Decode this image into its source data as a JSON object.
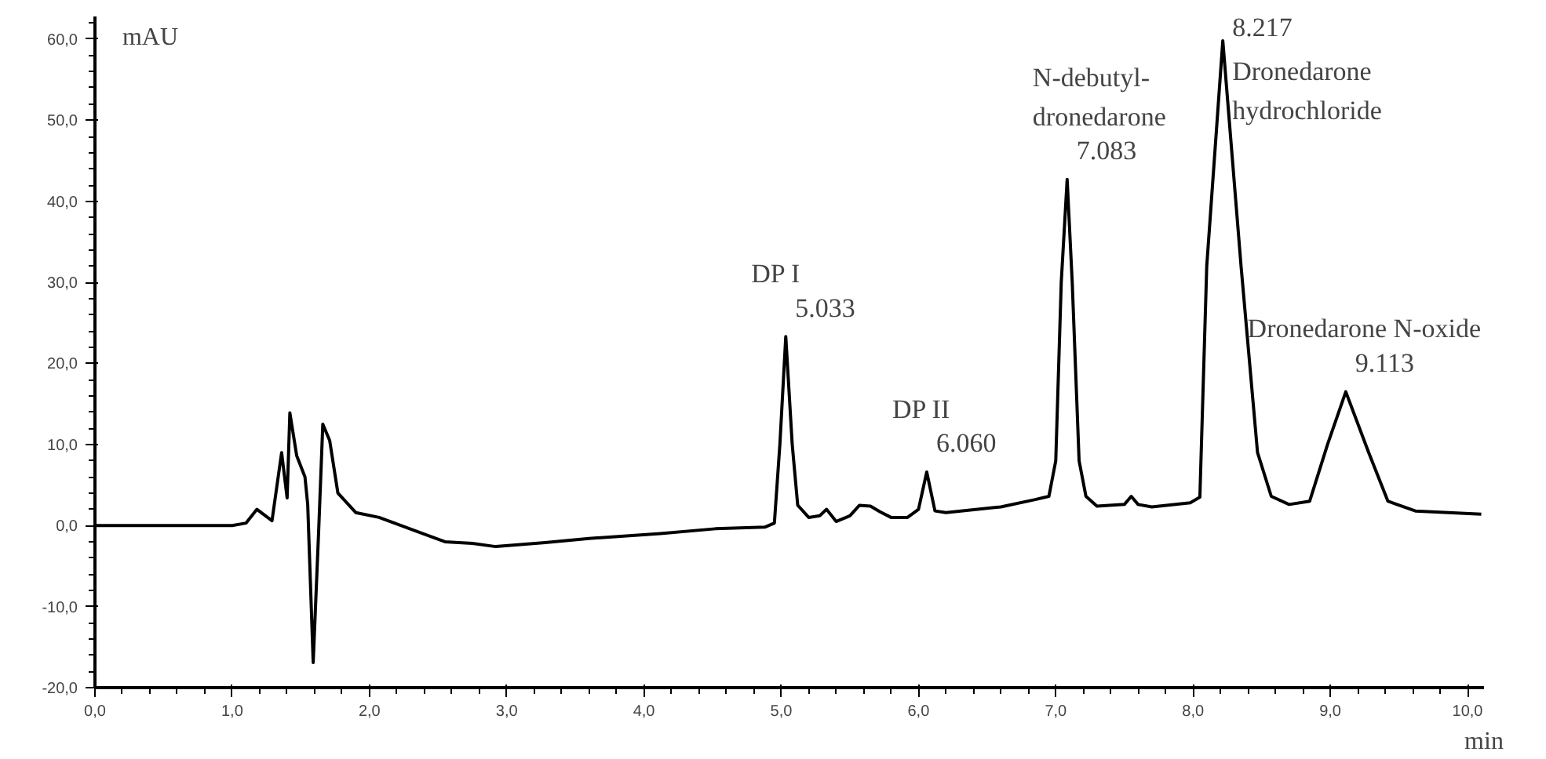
{
  "chart_data": {
    "type": "line",
    "ylabel": "mAU",
    "xlabel": "min",
    "grid": false,
    "marker": "none",
    "line_style": "solid",
    "xlim": [
      0,
      10.12
    ],
    "ylim": [
      -20,
      62.8
    ],
    "xticks": [
      {
        "value": 0,
        "label": "0,0"
      },
      {
        "value": 1,
        "label": "1,0"
      },
      {
        "value": 2,
        "label": "2,0"
      },
      {
        "value": 3,
        "label": "3,0"
      },
      {
        "value": 4,
        "label": "4,0"
      },
      {
        "value": 5,
        "label": "5,0"
      },
      {
        "value": 6,
        "label": "6,0"
      },
      {
        "value": 7,
        "label": "7,0"
      },
      {
        "value": 8,
        "label": "8,0"
      },
      {
        "value": 9,
        "label": "9,0"
      },
      {
        "value": 10,
        "label": "10,0"
      }
    ],
    "yticks": [
      {
        "value": -20,
        "label": "-20,0"
      },
      {
        "value": -10,
        "label": "-10,0"
      },
      {
        "value": 0,
        "label": "0,0"
      },
      {
        "value": 10,
        "label": "10,0"
      },
      {
        "value": 20,
        "label": "20,0"
      },
      {
        "value": 30,
        "label": "30,0"
      },
      {
        "value": 40,
        "label": "40,0"
      },
      {
        "value": 50,
        "label": "50,0"
      },
      {
        "value": 60,
        "label": "60,0"
      }
    ],
    "series": [
      {
        "color": "#000000",
        "x": [
          0,
          0.5,
          1.0,
          1.1,
          1.18,
          1.29,
          1.36,
          1.4,
          1.42,
          1.47,
          1.53,
          1.55,
          1.59,
          1.63,
          1.66,
          1.71,
          1.77,
          1.9,
          2.07,
          2.39,
          2.55,
          2.75,
          2.92,
          3.28,
          3.6,
          4.12,
          4.52,
          4.88,
          4.95,
          4.99,
          5.033,
          5.08,
          5.12,
          5.2,
          5.28,
          5.33,
          5.4,
          5.5,
          5.57,
          5.65,
          5.72,
          5.8,
          5.92,
          6.0,
          6.06,
          6.12,
          6.2,
          6.6,
          6.85,
          6.95,
          7.0,
          7.04,
          7.083,
          7.12,
          7.17,
          7.22,
          7.3,
          7.5,
          7.55,
          7.6,
          7.7,
          7.98,
          8.05,
          8.1,
          8.217,
          8.35,
          8.47,
          8.57,
          8.7,
          8.85,
          8.98,
          9.113,
          9.28,
          9.42,
          9.62,
          10.1
        ],
        "values": [
          0,
          0,
          0,
          0.3,
          2.0,
          0.6,
          9.0,
          3.4,
          13.9,
          8.6,
          6.0,
          2.6,
          -16.9,
          -0.6,
          12.5,
          10.5,
          4.0,
          1.6,
          1.0,
          -1.0,
          -2.0,
          -2.2,
          -2.6,
          -2.1,
          -1.6,
          -1.0,
          -0.4,
          -0.2,
          0.3,
          10,
          23.3,
          10,
          2.5,
          1.0,
          1.2,
          2.0,
          0.5,
          1.2,
          2.5,
          2.4,
          1.7,
          1.0,
          1.0,
          2.0,
          6.6,
          1.8,
          1.6,
          2.3,
          3.2,
          3.6,
          8,
          30,
          42.7,
          30,
          8,
          3.6,
          2.4,
          2.6,
          3.6,
          2.6,
          2.3,
          2.8,
          3.5,
          32,
          59.8,
          32,
          9,
          3.6,
          2.6,
          3.0,
          10,
          16.5,
          9,
          3.0,
          1.8,
          1.4
        ]
      }
    ],
    "annotations": [
      {
        "text": "DP I\n5.033",
        "x": 5.033,
        "y": 23.3
      },
      {
        "text": "DP II\n6.060",
        "x": 6.06,
        "y": 6.6
      },
      {
        "text": "N-debutyl-\ndronedarone\n7.083",
        "x": 7.083,
        "y": 42.7
      },
      {
        "text": "8.217\nDronedarone\nhydrochloride",
        "x": 8.217,
        "y": 59.8
      },
      {
        "text": "Dronedarone N-oxide\n9.113",
        "x": 9.113,
        "y": 16.5
      }
    ]
  }
}
